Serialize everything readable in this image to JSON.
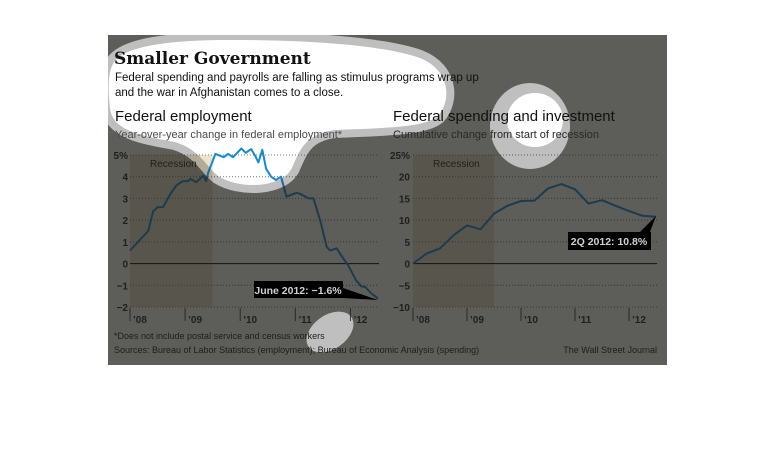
{
  "header": {
    "title": "Smaller Government",
    "subtitle_lines": [
      "Federal spending and payrolls are falling as stimulus programs wrap up",
      "and the war in Afghanistan comes to a close."
    ]
  },
  "colors": {
    "line": "#1488d0",
    "recession_shade": "#ece3cc",
    "overlay": "#201f1c",
    "callout_bg": "#000000",
    "highlight_ring": "#c2bdb2"
  },
  "chart_data": [
    {
      "type": "line",
      "title": "Federal employment",
      "subtitle": "Year-over-year change in federal employment*",
      "xlim": [
        2008,
        2012.5
      ],
      "ylim": [
        -2,
        5
      ],
      "grid": true,
      "y_ticks": [
        {
          "value": 5,
          "label": "5%"
        },
        {
          "value": 4,
          "label": "4"
        },
        {
          "value": 3,
          "label": "3"
        },
        {
          "value": 2,
          "label": "2"
        },
        {
          "value": 1,
          "label": "1"
        },
        {
          "value": 0,
          "label": "0"
        },
        {
          "value": -1,
          "label": "−1"
        },
        {
          "value": -2,
          "label": "−2"
        }
      ],
      "x_ticks": [
        {
          "value": 2008,
          "label": "’08"
        },
        {
          "value": 2009,
          "label": "’09"
        },
        {
          "value": 2010,
          "label": "’10"
        },
        {
          "value": 2011,
          "label": "’11"
        },
        {
          "value": 2012,
          "label": "’12"
        }
      ],
      "shaded_region": {
        "label": "Recession",
        "x": [
          2008,
          2009.5
        ]
      },
      "series": [
        {
          "x": [
            2008.0,
            2008.33,
            2008.42,
            2008.5,
            2008.6,
            2008.72,
            2008.84,
            2008.96,
            2009.05,
            2009.1,
            2009.2,
            2009.33,
            2009.38,
            2009.42,
            2009.55,
            2009.7,
            2009.78,
            2009.87,
            2010.02,
            2010.1,
            2010.2,
            2010.27,
            2010.33,
            2010.4,
            2010.47,
            2010.56,
            2010.65,
            2010.74,
            2010.84,
            2011.02,
            2011.1,
            2011.24,
            2011.33,
            2011.46,
            2011.57,
            2011.63,
            2011.75,
            2011.87,
            2011.96,
            2012.1,
            2012.2,
            2012.27,
            2012.38,
            2012.5
          ],
          "y": [
            0.6,
            1.5,
            2.4,
            2.6,
            2.6,
            3.15,
            3.6,
            3.8,
            3.8,
            3.9,
            3.75,
            4.05,
            3.8,
            4.2,
            5.05,
            4.9,
            5.05,
            4.9,
            5.3,
            5.1,
            5.27,
            4.97,
            4.66,
            5.24,
            4.37,
            4.0,
            3.85,
            4.0,
            3.08,
            3.26,
            3.2,
            3.0,
            3.0,
            1.9,
            0.77,
            0.6,
            0.7,
            0.23,
            -0.08,
            -0.77,
            -1.05,
            -1.08,
            -1.38,
            -1.6
          ]
        }
      ],
      "annotation": "June 2012: −1.6%"
    },
    {
      "type": "line",
      "title": "Federal spending and investment",
      "subtitle": "Cumulative change from start of recession",
      "xlim": [
        2008,
        2012.5
      ],
      "ylim": [
        -10,
        25
      ],
      "grid": true,
      "y_ticks": [
        {
          "value": 25,
          "label": "25%"
        },
        {
          "value": 20,
          "label": "20"
        },
        {
          "value": 15,
          "label": "15"
        },
        {
          "value": 10,
          "label": "10"
        },
        {
          "value": 5,
          "label": "5"
        },
        {
          "value": 0,
          "label": "0"
        },
        {
          "value": -5,
          "label": "−5"
        },
        {
          "value": -10,
          "label": "−10"
        }
      ],
      "x_ticks": [
        {
          "value": 2008,
          "label": "’08"
        },
        {
          "value": 2009,
          "label": "’09"
        },
        {
          "value": 2010,
          "label": "’10"
        },
        {
          "value": 2011,
          "label": "’11"
        },
        {
          "value": 2012,
          "label": "’12"
        }
      ],
      "shaded_region": {
        "label": "Recession",
        "x": [
          2008,
          2009.5
        ]
      },
      "series": [
        {
          "x": [
            2008.0,
            2008.25,
            2008.5,
            2008.75,
            2009.0,
            2009.25,
            2009.5,
            2009.75,
            2010.0,
            2010.25,
            2010.5,
            2010.75,
            2011.0,
            2011.25,
            2011.5,
            2011.75,
            2012.0,
            2012.25,
            2012.5
          ],
          "y": [
            0,
            2.3,
            3.5,
            6.5,
            8.8,
            7.9,
            11.5,
            13.3,
            14.4,
            14.5,
            17.3,
            18.3,
            17.1,
            13.8,
            14.6,
            13.3,
            12.1,
            11.0,
            10.8
          ]
        }
      ],
      "annotation": "2Q 2012: 10.8%"
    }
  ],
  "footer": {
    "footnote": "*Does not include postal service and census workers",
    "sources": "Sources: Bureau of Labor Statistics (employment); Bureau of Economic Analysis (spending)",
    "credit": "The Wall Street Journal"
  }
}
